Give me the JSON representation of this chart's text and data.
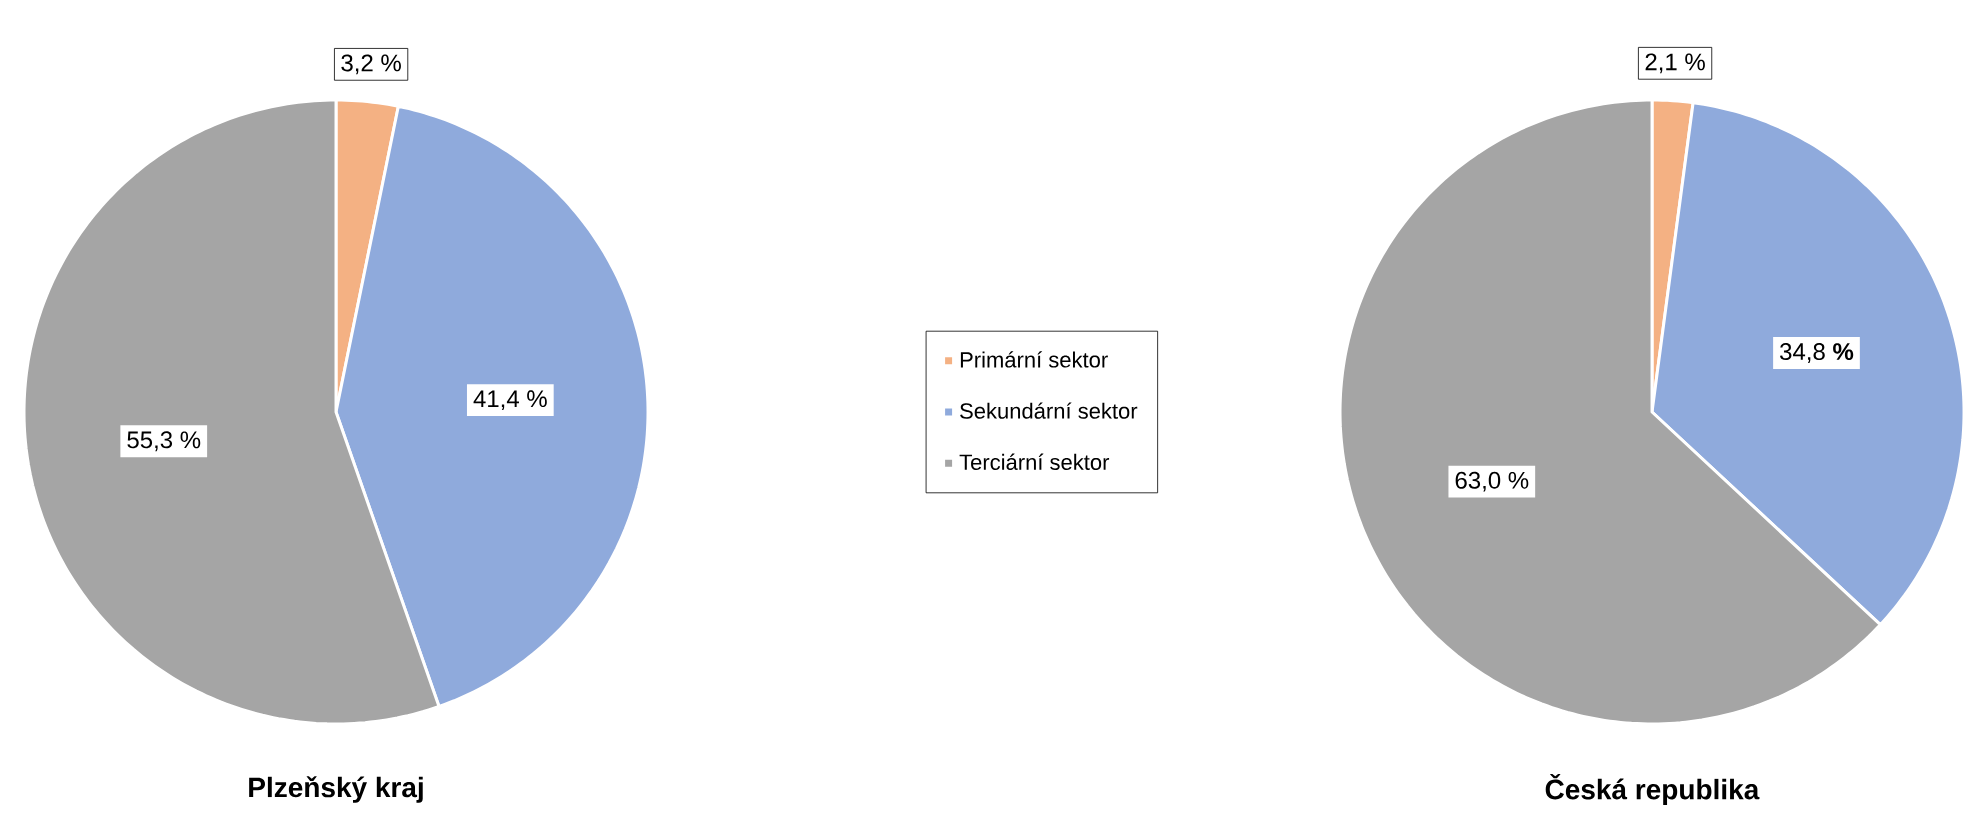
{
  "chart_data": [
    {
      "type": "pie",
      "title": "**Plzeňský kraj**",
      "categories": [
        "Primární sektor",
        "Sekundární sektor",
        "Terciární sektor"
      ],
      "values": [
        3.2,
        41.4,
        55.3
      ],
      "colors": [
        "#f4b183",
        "#8faadc",
        "#a5a5a5"
      ],
      "value_labels": [
        "3,2 %",
        "41,4 %",
        "55,3 %"
      ],
      "legend": "right"
    },
    {
      "type": "pie",
      "title": "**Česká republika**",
      "categories": [
        null,
        null,
        null
      ],
      "values": [
        2.1,
        34.8,
        63.0
      ],
      "colors": [
        "#f4b183",
        "#8faadc",
        "#a5a5a5"
      ],
      "value_labels": [
        "2,1 %",
        "34,8 **%**",
        "63,0 %"
      ]
    }
  ]
}
